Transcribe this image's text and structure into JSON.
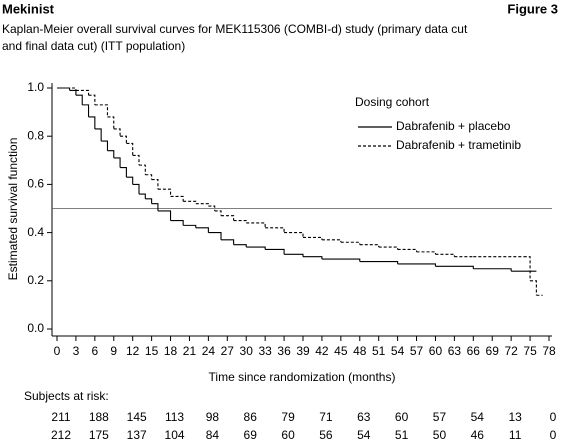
{
  "header": {
    "product": "Mekinist",
    "figure": "Figure 3"
  },
  "chart_data": {
    "type": "km",
    "title": [
      "Kaplan-Meier overall survival curves for MEK115306 (COMBI-d) study (primary data cut",
      "and final data cut) (ITT population)"
    ],
    "xlabel": "Time since randomization (months)",
    "ylabel": "Estimated survival function",
    "xlim": [
      0,
      78
    ],
    "xticks": [
      0,
      3,
      6,
      9,
      12,
      15,
      18,
      21,
      24,
      27,
      30,
      33,
      36,
      39,
      42,
      45,
      48,
      51,
      54,
      57,
      60,
      63,
      66,
      69,
      72,
      75,
      78
    ],
    "ylim": [
      0,
      1
    ],
    "yticks": [
      {
        "value": 0,
        "label": "0.0"
      },
      {
        "value": 0.2,
        "label": "0.2"
      },
      {
        "value": 0.4,
        "label": "0.4"
      },
      {
        "value": 0.6,
        "label": "0.6"
      },
      {
        "value": 0.8,
        "label": "0.8"
      },
      {
        "value": 1,
        "label": "1.0"
      }
    ],
    "reference_line": 0.5,
    "legend_title": "Dosing cohort",
    "series": [
      {
        "name": "Dabrafenib + placebo",
        "color": "#000000",
        "dash": false,
        "x": [
          0,
          2,
          3,
          4,
          5,
          6,
          7,
          8,
          9,
          10,
          11,
          12,
          13,
          14,
          15,
          16,
          18,
          20,
          22,
          24,
          26,
          28,
          30,
          33,
          36,
          39,
          42,
          48,
          54,
          60,
          66,
          72,
          76
        ],
        "values": [
          1.0,
          0.99,
          0.97,
          0.93,
          0.88,
          0.83,
          0.78,
          0.74,
          0.71,
          0.67,
          0.63,
          0.6,
          0.56,
          0.54,
          0.52,
          0.49,
          0.45,
          0.43,
          0.42,
          0.4,
          0.37,
          0.35,
          0.34,
          0.33,
          0.31,
          0.3,
          0.29,
          0.28,
          0.27,
          0.26,
          0.25,
          0.24,
          0.24
        ]
      },
      {
        "name": "Dabrafenib + trametinib",
        "color": "#000000",
        "dash": true,
        "x": [
          0,
          3,
          5,
          6,
          8,
          9,
          10,
          11,
          12,
          13,
          14,
          15,
          16,
          18,
          20,
          22,
          24,
          25,
          26,
          28,
          30,
          33,
          36,
          39,
          42,
          45,
          48,
          51,
          54,
          57,
          60,
          63,
          66,
          74,
          75,
          76,
          77
        ],
        "values": [
          1.0,
          0.99,
          0.97,
          0.93,
          0.88,
          0.83,
          0.8,
          0.77,
          0.72,
          0.68,
          0.64,
          0.62,
          0.58,
          0.55,
          0.53,
          0.52,
          0.51,
          0.49,
          0.47,
          0.45,
          0.44,
          0.42,
          0.4,
          0.38,
          0.37,
          0.36,
          0.35,
          0.34,
          0.33,
          0.32,
          0.31,
          0.3,
          0.3,
          0.3,
          0.2,
          0.14,
          0.14
        ]
      }
    ],
    "risk_table": {
      "title": "Subjects at risk:",
      "rows": [
        [
          211,
          188,
          145,
          113,
          98,
          86,
          79,
          71,
          63,
          60,
          57,
          54,
          13,
          0
        ],
        [
          212,
          175,
          137,
          104,
          84,
          69,
          60,
          56,
          54,
          51,
          50,
          46,
          11,
          0
        ]
      ]
    }
  }
}
